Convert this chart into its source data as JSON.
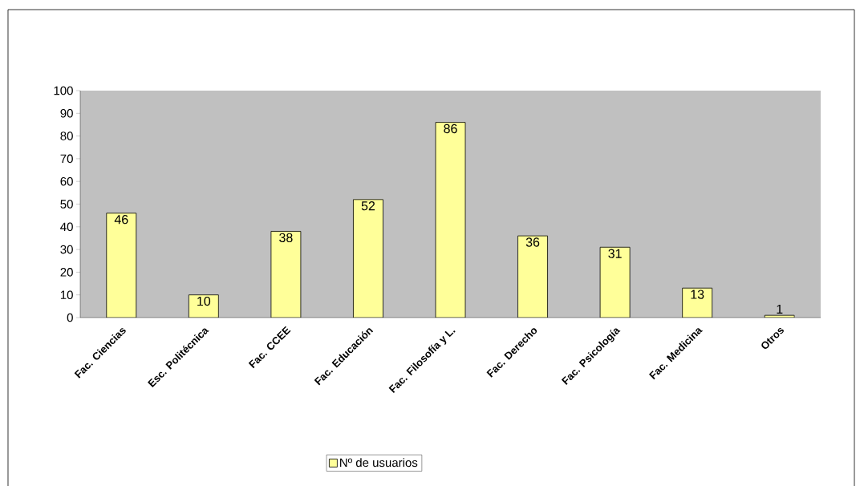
{
  "chart_data": {
    "type": "bar",
    "categories": [
      "Fac. Ciencias",
      "Esc. Politécnica",
      "Fac. CCEE",
      "Fac. Educación",
      "Fac. Filosofía y L.",
      "Fac. Derecho",
      "Fac. Psicología",
      "Fac. Medicina",
      "Otros"
    ],
    "series": [
      {
        "name": "Nº de usuarios",
        "color": "#ffff99",
        "values": [
          46,
          10,
          38,
          52,
          86,
          36,
          31,
          13,
          1
        ]
      }
    ],
    "ylim": [
      0,
      100
    ],
    "yticks": [
      0,
      10,
      20,
      30,
      40,
      50,
      60,
      70,
      80,
      90,
      100
    ],
    "legend": "bottom",
    "data_labels": true
  }
}
